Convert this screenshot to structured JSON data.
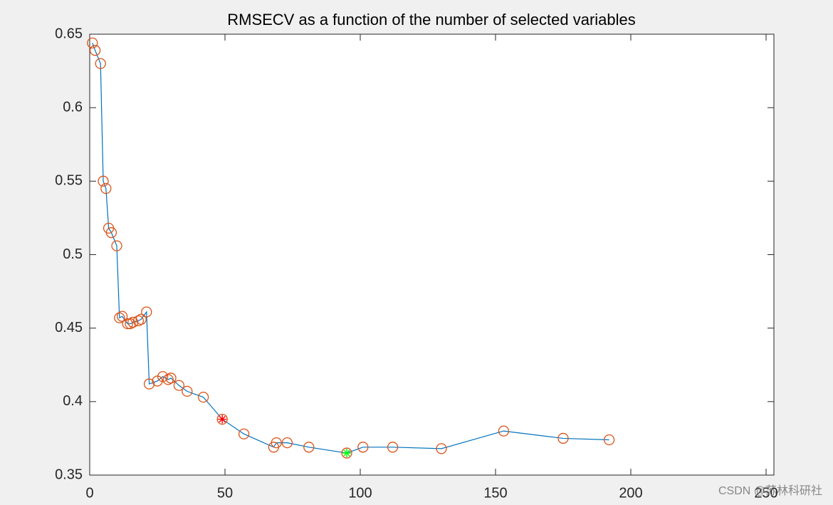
{
  "chart_data": {
    "type": "line",
    "title": "RMSECV as a function of the number of selected variables",
    "x": [
      1,
      2,
      4,
      5,
      6,
      7,
      8,
      10,
      11,
      12,
      14,
      15,
      16,
      18,
      19,
      21,
      22,
      25,
      27,
      29,
      30,
      33,
      36,
      42,
      49,
      57,
      68,
      69,
      73,
      81,
      95,
      101,
      112,
      130,
      153,
      175,
      192
    ],
    "series": [
      {
        "color": "#0072bd",
        "marker_color": "#d95319",
        "values": [
          0.644,
          0.639,
          0.63,
          0.55,
          0.545,
          0.518,
          0.515,
          0.506,
          0.457,
          0.458,
          0.453,
          0.453,
          0.454,
          0.455,
          0.456,
          0.461,
          0.412,
          0.414,
          0.417,
          0.415,
          0.416,
          0.411,
          0.407,
          0.403,
          0.388,
          0.378,
          0.369,
          0.372,
          0.372,
          0.369,
          0.365,
          0.369,
          0.369,
          0.368,
          0.38,
          0.375,
          0.374
        ]
      }
    ],
    "highlights": [
      {
        "x": 49,
        "y": 0.388,
        "color": "#ff0000"
      },
      {
        "x": 95,
        "y": 0.365,
        "color": "#00ff00"
      }
    ],
    "xlim": [
      0,
      250
    ],
    "xticks": [
      0,
      50,
      100,
      150,
      200,
      250
    ],
    "ylim": [
      0.35,
      0.65
    ],
    "yticks": [
      0.35,
      0.4,
      0.45,
      0.5,
      0.55,
      0.6,
      0.65
    ],
    "watermark": "CSDN @苏林科研社"
  }
}
